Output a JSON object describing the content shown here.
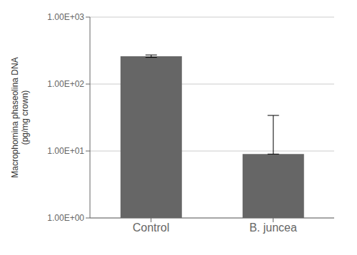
{
  "chart_data": {
    "type": "bar",
    "categories": [
      "Control",
      "B. juncea"
    ],
    "values": [
      260,
      9.0
    ],
    "error_lower": [
      10,
      0
    ],
    "error_upper": [
      12,
      25
    ],
    "color": "#666666",
    "ylabel": "Macrophomina phaseolina DNA\n(pg/mg crown)",
    "log": "y",
    "ylim": [
      1,
      1000
    ],
    "yticks": [
      {
        "value": 1,
        "label": "1.00E+00"
      },
      {
        "value": 10,
        "label": "1.00E+01"
      },
      {
        "value": 100,
        "label": "1.00E+02"
      },
      {
        "value": 1000,
        "label": "1.00E+03"
      }
    ],
    "grid": true
  }
}
